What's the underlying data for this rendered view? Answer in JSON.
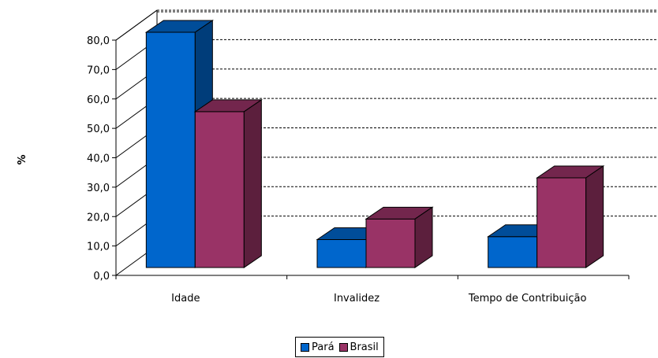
{
  "chart_data": {
    "type": "bar",
    "categories": [
      "Idade",
      "Invalidez",
      "Tempo de Contribuição"
    ],
    "series": [
      {
        "name": "Pará",
        "values": [
          80.0,
          9.5,
          10.5
        ],
        "color": "#0066CC"
      },
      {
        "name": "Brasil",
        "values": [
          53.0,
          16.5,
          30.5
        ],
        "color": "#993366"
      }
    ],
    "ylabel": "%",
    "ylim": [
      0,
      80
    ],
    "yticks": [
      "0,0",
      "10,0",
      "20,0",
      "30,0",
      "40,0",
      "50,0",
      "60,0",
      "70,0",
      "80,0"
    ],
    "grid": true,
    "three_d": true,
    "legend_position": "bottom"
  }
}
